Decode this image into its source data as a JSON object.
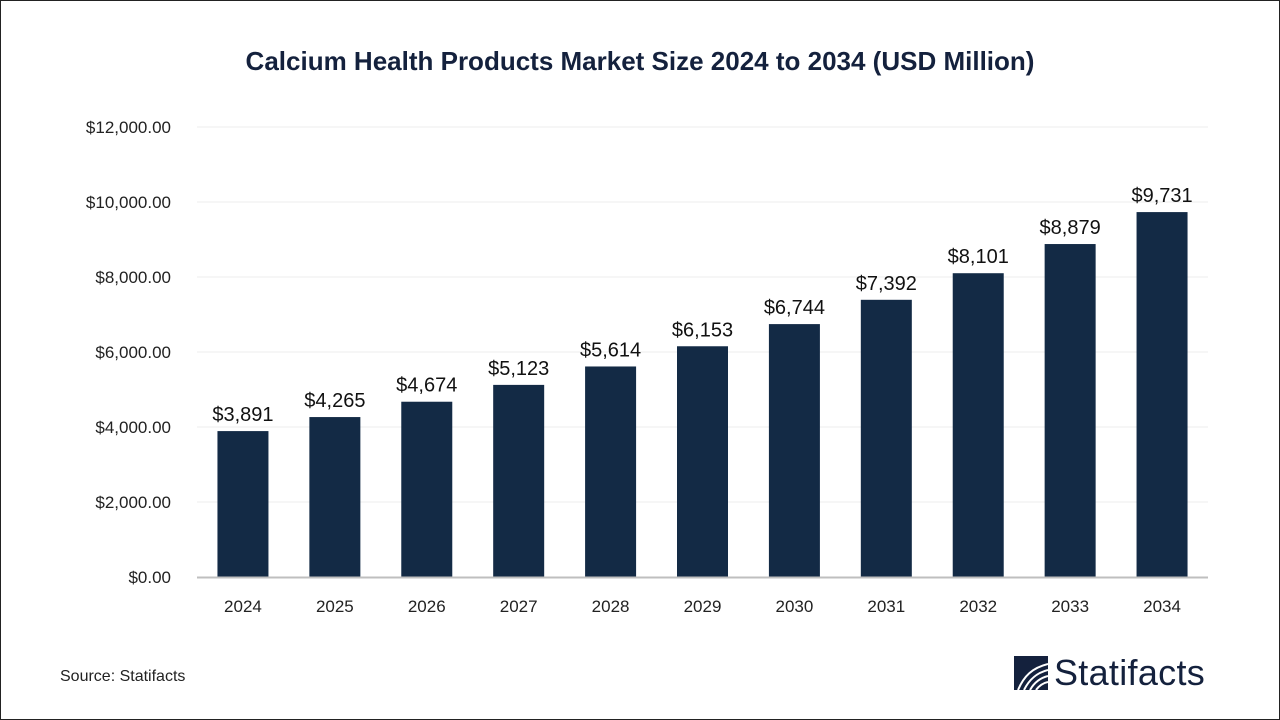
{
  "chart_data": {
    "type": "bar",
    "title": "Calcium Health Products Market Size 2024 to 2034 (USD Million)",
    "categories": [
      "2024",
      "2025",
      "2026",
      "2027",
      "2028",
      "2029",
      "2030",
      "2031",
      "2032",
      "2033",
      "2034"
    ],
    "values": [
      3891,
      4265,
      4674,
      5123,
      5614,
      6153,
      6744,
      7392,
      8101,
      8879,
      9731
    ],
    "data_labels": [
      "$3,891",
      "$4,265",
      "$4,674",
      "$5,123",
      "$5,614",
      "$6,153",
      "$6,744",
      "$7,392",
      "$8,101",
      "$8,879",
      "$9,731"
    ],
    "ylim": [
      0,
      12000
    ],
    "yticks": [
      0,
      2000,
      4000,
      6000,
      8000,
      10000,
      12000
    ],
    "ytick_labels": [
      "$0.00",
      "$2,000.00",
      "$4,000.00",
      "$6,000.00",
      "$8,000.00",
      "$10,000.00",
      "$12,000.00"
    ],
    "xlabel": "",
    "ylabel": "",
    "grid": true,
    "bar_color": "#132a45"
  },
  "source": "Source: Statifacts",
  "logo": {
    "text": "Statifacts",
    "color": "#14213d"
  }
}
